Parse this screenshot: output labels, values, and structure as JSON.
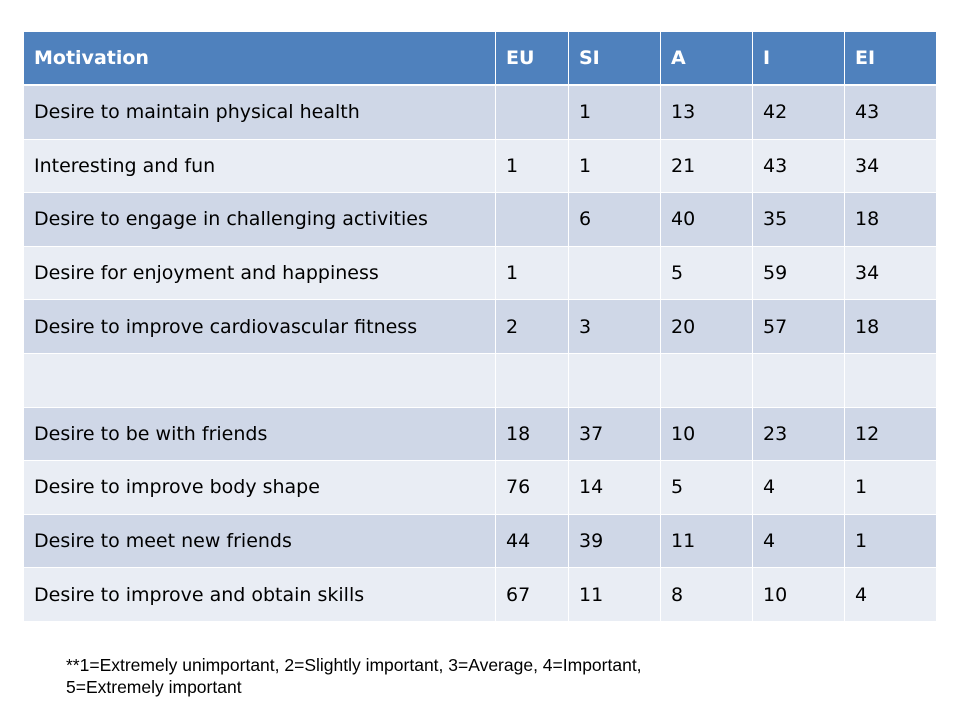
{
  "table": {
    "headers": [
      "Motivation",
      "EU",
      "SI",
      "A",
      "I",
      "EI"
    ],
    "rows": [
      [
        "Desire to maintain physical health",
        "",
        "1",
        "13",
        "42",
        "43"
      ],
      [
        "Interesting and fun",
        "1",
        "1",
        "21",
        "43",
        "34"
      ],
      [
        "Desire to engage in challenging activities",
        "",
        "6",
        "40",
        "35",
        "18"
      ],
      [
        "Desire for enjoyment and happiness",
        "1",
        "",
        "5",
        "59",
        "34"
      ],
      [
        "Desire to improve cardiovascular fitness",
        "2",
        "3",
        "20",
        "57",
        "18"
      ],
      [
        "",
        "",
        "",
        "",
        "",
        ""
      ],
      [
        "Desire to be with friends",
        "18",
        "37",
        "10",
        "23",
        "12"
      ],
      [
        "Desire to improve body shape",
        "76",
        "14",
        "5",
        "4",
        "1"
      ],
      [
        "Desire to meet new friends",
        "44",
        "39",
        "11",
        "4",
        "1"
      ],
      [
        "Desire to improve and obtain skills",
        "67",
        "11",
        "8",
        "10",
        "4"
      ]
    ]
  },
  "footnote": {
    "line1": "**1=Extremely unimportant, 2=Slightly important, 3=Average, 4=Important,",
    "line2": "5=Extremely important"
  },
  "colors": {
    "header_bg": "#4f81bd",
    "row_dark": "#cfd7e7",
    "row_light": "#e9edf4"
  }
}
